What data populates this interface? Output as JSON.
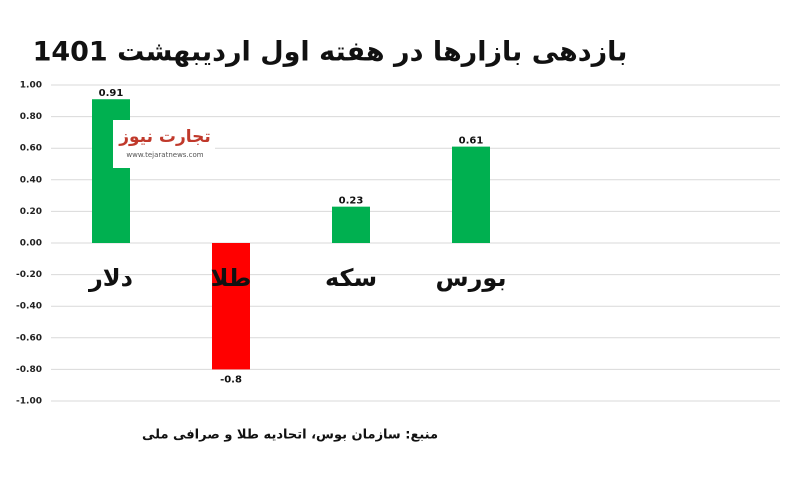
{
  "chart_data": {
    "type": "bar",
    "title": "بازدهی بازارها در هفته اول اردیبهشت 1401",
    "categories": [
      "دلار",
      "طلا",
      "سکه",
      "بورس"
    ],
    "values": [
      0.91,
      -0.8,
      0.23,
      0.61
    ],
    "colors": [
      "#00b050",
      "#ff0000",
      "#00b050",
      "#00b050"
    ],
    "ylim": [
      -1,
      1
    ],
    "yticks": [
      {
        "value": 1,
        "label": "1.00"
      },
      {
        "value": 0.8,
        "label": "0.80"
      },
      {
        "value": 0.6,
        "label": "0.60"
      },
      {
        "value": 0.4,
        "label": "0.40"
      },
      {
        "value": 0.2,
        "label": "0.20"
      },
      {
        "value": 0,
        "label": "0.00"
      },
      {
        "value": -0.2,
        "label": "-0.20"
      },
      {
        "value": -0.4,
        "label": "-0.40"
      },
      {
        "value": -0.6,
        "label": "-0.60"
      },
      {
        "value": -0.8,
        "label": "-0.80"
      },
      {
        "value": -1,
        "label": "-1.00"
      }
    ],
    "grid": true,
    "source": "منبع: سازمان بوس، اتحادیه طلا و صرافی ملی",
    "watermark": {
      "name": "تجارت نیوز",
      "url": "www.tejaratnews.com"
    }
  }
}
